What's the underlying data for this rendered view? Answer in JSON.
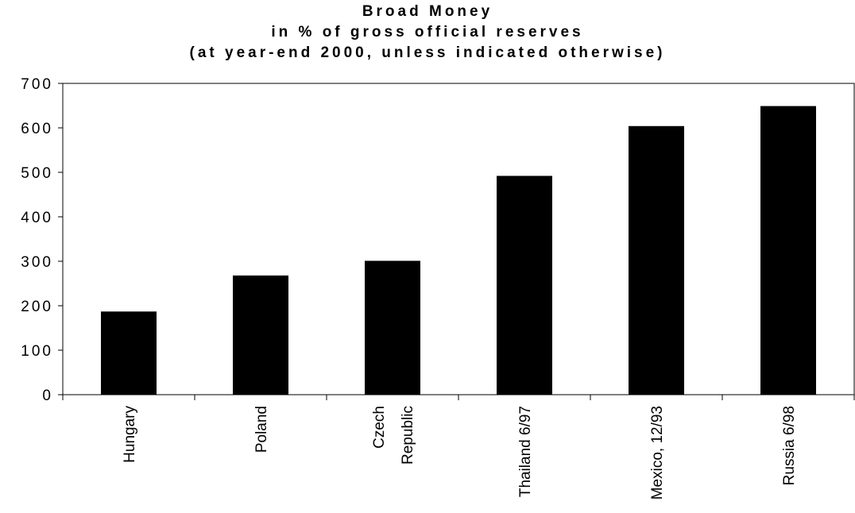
{
  "chart_data": {
    "type": "bar",
    "title": "Broad Money",
    "subtitle_lines": [
      "in % of gross official reserves",
      "(at year-end 2000, unless indicated otherwise)"
    ],
    "categories": [
      "Hungary",
      "Poland",
      "Czech Republic",
      "Thailand 6/97",
      "Mexico, 12/93",
      "Russia 6/98"
    ],
    "category_label_lines": [
      [
        "Hungary"
      ],
      [
        "Poland"
      ],
      [
        "Czech",
        "Republic"
      ],
      [
        "Thailand 6/97"
      ],
      [
        "Mexico, 12/93"
      ],
      [
        "Russia 6/98"
      ]
    ],
    "values": [
      187,
      268,
      301,
      492,
      604,
      649
    ],
    "ylim": [
      0,
      700
    ],
    "yticks": [
      0,
      100,
      200,
      300,
      400,
      500,
      600,
      700
    ],
    "xlabel": "",
    "ylabel": "",
    "grid": false,
    "legend": "none",
    "bar_color": "#000000"
  }
}
